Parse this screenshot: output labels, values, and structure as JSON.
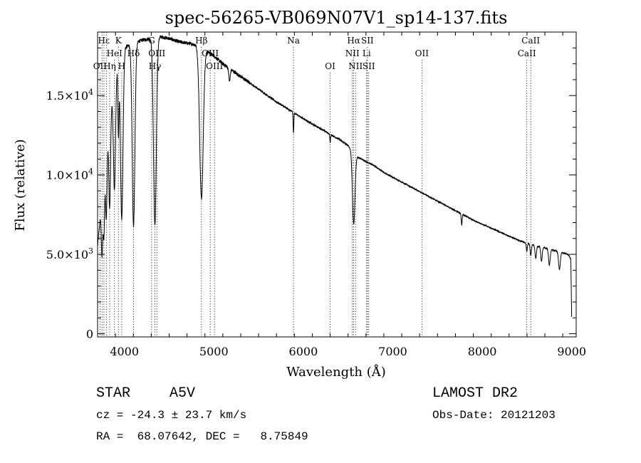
{
  "chart_data": {
    "type": "line",
    "title": "spec-56265-VB069N07V1_sp14-137.fits",
    "xlabel": "Wavelength (Å)",
    "ylabel": "Flux (relative)",
    "xlim": [
      3700,
      9050
    ],
    "ylim": [
      -200,
      19000
    ],
    "x_ticks": [
      {
        "value": 4000,
        "label": "4000"
      },
      {
        "value": 5000,
        "label": "5000"
      },
      {
        "value": 6000,
        "label": "6000"
      },
      {
        "value": 7000,
        "label": "7000"
      },
      {
        "value": 8000,
        "label": "8000"
      },
      {
        "value": 9000,
        "label": "9000"
      }
    ],
    "y_ticks": [
      {
        "value": 0,
        "label": "0",
        "mant": "0",
        "exp": ""
      },
      {
        "value": 5000,
        "label": "5.0×10³",
        "mant": "5.0×10",
        "exp": "3"
      },
      {
        "value": 10000,
        "label": "1.0×10⁴",
        "mant": "1.0×10",
        "exp": "4"
      },
      {
        "value": 15000,
        "label": "1.5×10⁴",
        "mant": "1.5×10",
        "exp": "4"
      }
    ],
    "series": [
      {
        "name": "spectrum",
        "continuum": [
          [
            3700,
            5500
          ],
          [
            3750,
            8500
          ],
          [
            3800,
            12500
          ],
          [
            3850,
            14500
          ],
          [
            3900,
            16500
          ],
          [
            3950,
            17500
          ],
          [
            4000,
            18000
          ],
          [
            4100,
            18300
          ],
          [
            4200,
            18500
          ],
          [
            4300,
            18600
          ],
          [
            4400,
            18700
          ],
          [
            4500,
            18600
          ],
          [
            4600,
            18400
          ],
          [
            4700,
            18300
          ],
          [
            4800,
            18200
          ],
          [
            4900,
            17900
          ],
          [
            5000,
            17500
          ],
          [
            5100,
            17000
          ],
          [
            5200,
            16600
          ],
          [
            5300,
            16200
          ],
          [
            5400,
            15800
          ],
          [
            5500,
            15400
          ],
          [
            5600,
            15000
          ],
          [
            5700,
            14600
          ],
          [
            5800,
            14250
          ],
          [
            5900,
            13900
          ],
          [
            6000,
            13550
          ],
          [
            6100,
            13200
          ],
          [
            6200,
            12900
          ],
          [
            6300,
            12550
          ],
          [
            6400,
            12250
          ],
          [
            6500,
            11850
          ],
          [
            6600,
            11150
          ],
          [
            6700,
            10850
          ],
          [
            6800,
            10550
          ],
          [
            6900,
            10150
          ],
          [
            7000,
            9850
          ],
          [
            7100,
            9550
          ],
          [
            7200,
            9250
          ],
          [
            7300,
            8950
          ],
          [
            7400,
            8650
          ],
          [
            7500,
            8350
          ],
          [
            7600,
            8050
          ],
          [
            7700,
            7750
          ],
          [
            7800,
            7450
          ],
          [
            7900,
            7150
          ],
          [
            8000,
            6900
          ],
          [
            8100,
            6650
          ],
          [
            8200,
            6400
          ],
          [
            8300,
            6150
          ],
          [
            8400,
            5900
          ],
          [
            8500,
            5700
          ],
          [
            8600,
            5550
          ],
          [
            8700,
            5400
          ],
          [
            8800,
            5250
          ],
          [
            8900,
            5100
          ],
          [
            8960,
            5000
          ],
          [
            8990,
            4700
          ],
          [
            9000,
            900
          ]
        ],
        "absorptions": [
          {
            "center": 3750,
            "depth": 3500,
            "width": 8
          },
          {
            "center": 3771,
            "depth": 4000,
            "width": 8
          },
          {
            "center": 3798,
            "depth": 5000,
            "width": 9
          },
          {
            "center": 3835,
            "depth": 6000,
            "width": 10
          },
          {
            "center": 3889,
            "depth": 7000,
            "width": 12
          },
          {
            "center": 3933,
            "depth": 4500,
            "width": 6
          },
          {
            "center": 3970,
            "depth": 10500,
            "width": 14
          },
          {
            "center": 4102,
            "depth": 11500,
            "width": 15
          },
          {
            "center": 4341,
            "depth": 11800,
            "width": 16
          },
          {
            "center": 4861,
            "depth": 9500,
            "width": 20
          },
          {
            "center": 5175,
            "depth": 800,
            "width": 8
          },
          {
            "center": 5890,
            "depth": 1300,
            "width": 4
          },
          {
            "center": 6300,
            "depth": 500,
            "width": 4
          },
          {
            "center": 6563,
            "depth": 4500,
            "width": 14
          },
          {
            "center": 7770,
            "depth": 700,
            "width": 5
          },
          {
            "center": 8498,
            "depth": 500,
            "width": 6
          },
          {
            "center": 8542,
            "depth": 700,
            "width": 7
          },
          {
            "center": 8598,
            "depth": 800,
            "width": 8
          },
          {
            "center": 8662,
            "depth": 900,
            "width": 8
          },
          {
            "center": 8750,
            "depth": 1000,
            "width": 9
          },
          {
            "center": 8863,
            "depth": 1100,
            "width": 10
          }
        ]
      }
    ],
    "line_markers": [
      {
        "wave": 3727,
        "label": "OII",
        "row": 3
      },
      {
        "wave": 3750,
        "label": "",
        "row": 3
      },
      {
        "wave": 3771,
        "label": "",
        "row": 3
      },
      {
        "wave": 3798,
        "label": "",
        "row": 3
      },
      {
        "wave": 3835,
        "label": "Hη",
        "row": 3
      },
      {
        "wave": 3889,
        "label": "HeI",
        "row": 2
      },
      {
        "wave": 3933,
        "label": "K",
        "row": 1
      },
      {
        "wave": 3970,
        "label": "H",
        "row": 3
      },
      {
        "wave": 4102,
        "label": "Hδ",
        "row": 2
      },
      {
        "wave": 4304,
        "label": "G",
        "row": 1
      },
      {
        "wave": 4341,
        "label": "Hγ",
        "row": 3
      },
      {
        "wave": 4363,
        "label": "OIII",
        "row": 2
      },
      {
        "wave": 4861,
        "label": "Hβ",
        "row": 1
      },
      {
        "wave": 4959,
        "label": "OIII",
        "row": 2
      },
      {
        "wave": 5007,
        "label": "OIII",
        "row": 3
      },
      {
        "wave": 5890,
        "label": "Na",
        "row": 1
      },
      {
        "wave": 6300,
        "label": "OI",
        "row": 3
      },
      {
        "wave": 6548,
        "label": "NII",
        "row": 2
      },
      {
        "wave": 6563,
        "label": "Hα",
        "row": 1
      },
      {
        "wave": 6584,
        "label": "NII",
        "row": 3
      },
      {
        "wave": 6708,
        "label": "Li",
        "row": 2
      },
      {
        "wave": 6716,
        "label": "SII",
        "row": 1
      },
      {
        "wave": 6731,
        "label": "SII",
        "row": 3
      },
      {
        "wave": 7325,
        "label": "OII",
        "row": 2
      },
      {
        "wave": 8498,
        "label": "CaII",
        "row": 2
      },
      {
        "wave": 8542,
        "label": "CaII",
        "row": 1
      }
    ],
    "hepsilon_label": "Hε"
  },
  "info": {
    "class_label": "STAR",
    "subclass": "A5V",
    "survey": "LAMOST DR2",
    "cz_text": "cz = -24.3 ± 23.7 km/s",
    "obs_date": "Obs-Date: 20121203",
    "coords": "RA =  68.07642, DEC =   8.75849"
  }
}
